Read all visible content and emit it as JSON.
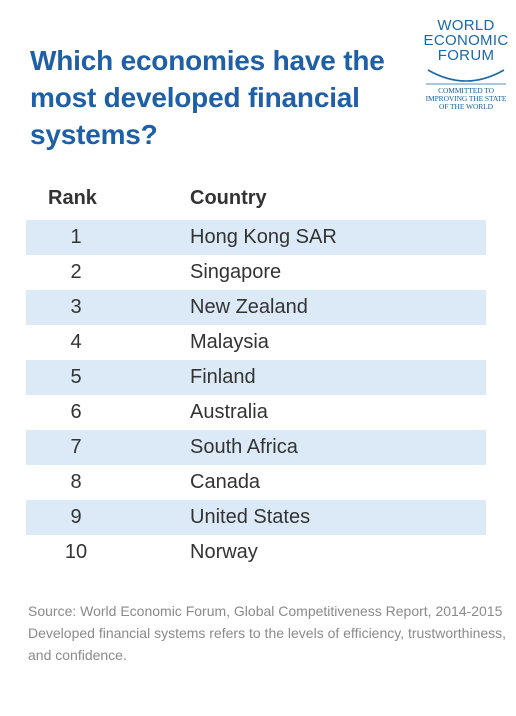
{
  "title": "Which economies have the most developed financial systems?",
  "logo": {
    "line1": "WORLD",
    "line2": "ECONOMIC",
    "line3": "FORUM",
    "tag1": "COMMITTED TO",
    "tag2": "IMPROVING THE STATE",
    "tag3": "OF THE WORLD"
  },
  "colors": {
    "title": "#1f5fa6",
    "row_shade": "#dceaf7",
    "text": "#333333",
    "footer": "#8a8a8a"
  },
  "chart_data": {
    "type": "table",
    "columns": [
      "Rank",
      "Country"
    ],
    "rows": [
      {
        "rank": "1",
        "country": "Hong Kong SAR"
      },
      {
        "rank": "2",
        "country": "Singapore"
      },
      {
        "rank": "3",
        "country": "New Zealand"
      },
      {
        "rank": "4",
        "country": "Malaysia"
      },
      {
        "rank": "5",
        "country": "Finland"
      },
      {
        "rank": "6",
        "country": "Australia"
      },
      {
        "rank": "7",
        "country": "South Africa"
      },
      {
        "rank": "8",
        "country": "Canada"
      },
      {
        "rank": "9",
        "country": "United States"
      },
      {
        "rank": "10",
        "country": "Norway"
      }
    ]
  },
  "footer": {
    "source": "Source: World Economic Forum, Global Competitiveness Report, 2014-2015",
    "note": "Developed financial systems refers to the levels of efficiency, trustworthiness, and confidence."
  }
}
